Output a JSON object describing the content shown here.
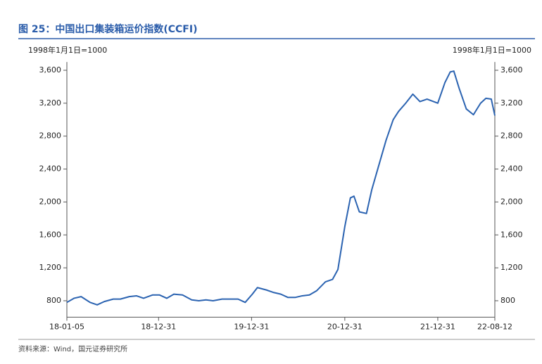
{
  "chart_data": {
    "type": "line",
    "title": "图 25：中国出口集装箱运价指数(CCFI)",
    "y_label": "1998年1月1日=1000",
    "source": "资料来源：Wind，国元证券研究所",
    "x": [
      "18-01-05",
      "18-02-02",
      "18-03-02",
      "18-04-06",
      "18-05-04",
      "18-06-01",
      "18-07-06",
      "18-08-03",
      "18-09-07",
      "18-10-05",
      "18-11-02",
      "18-12-07",
      "19-01-04",
      "19-02-01",
      "19-03-01",
      "19-04-04",
      "19-05-10",
      "19-06-07",
      "19-07-05",
      "19-08-02",
      "19-09-06",
      "19-10-11",
      "19-11-08",
      "19-12-06",
      "20-01-03",
      "20-01-23",
      "20-02-28",
      "20-03-27",
      "20-04-24",
      "20-05-22",
      "20-06-19",
      "20-07-17",
      "20-08-14",
      "20-09-11",
      "20-10-16",
      "20-11-13",
      "20-12-04",
      "20-12-31",
      "21-01-22",
      "21-02-05",
      "21-02-26",
      "21-03-26",
      "21-04-16",
      "21-05-14",
      "21-06-11",
      "21-07-09",
      "21-07-30",
      "21-08-27",
      "21-09-24",
      "21-10-22",
      "21-11-19",
      "21-12-31",
      "22-01-28",
      "22-02-18",
      "22-03-04",
      "22-03-25",
      "22-04-22",
      "22-05-20",
      "22-06-17",
      "22-07-08",
      "22-07-29",
      "22-08-12"
    ],
    "series": [
      {
        "color": "#2b63b1",
        "values": [
          780,
          830,
          850,
          780,
          750,
          790,
          820,
          820,
          850,
          860,
          830,
          870,
          870,
          830,
          880,
          870,
          810,
          800,
          810,
          800,
          820,
          820,
          820,
          780,
          880,
          960,
          930,
          900,
          880,
          840,
          840,
          860,
          870,
          920,
          1030,
          1060,
          1180,
          1700,
          2050,
          2070,
          1880,
          1860,
          2150,
          2450,
          2750,
          3000,
          3100,
          3200,
          3310,
          3220,
          3250,
          3200,
          3450,
          3580,
          3590,
          3380,
          3130,
          3060,
          3200,
          3260,
          3250,
          3050
        ]
      }
    ],
    "xlim": [
      "18-01-05",
      "22-08-12"
    ],
    "xticks": [
      "18-01-05",
      "18-12-31",
      "19-12-31",
      "20-12-31",
      "21-12-31",
      "22-08-12"
    ],
    "ylim": [
      600,
      3700
    ],
    "yticks": [
      800,
      {
        "value": 1200,
        "label": "1,200"
      },
      {
        "value": 1600,
        "label": "1,600"
      },
      {
        "value": 2000,
        "label": "2,000"
      },
      {
        "value": 2400,
        "label": "2,400"
      },
      {
        "value": 2800,
        "label": "2,800"
      },
      {
        "value": 3200,
        "label": "3,200"
      },
      {
        "value": 3600,
        "label": "3,600"
      }
    ]
  }
}
